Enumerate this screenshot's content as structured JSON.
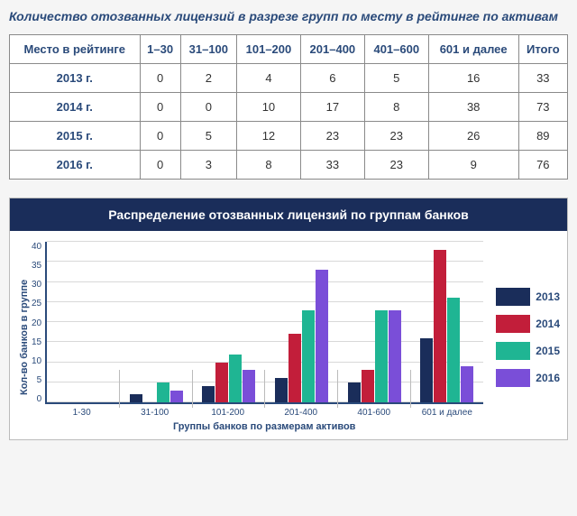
{
  "title": "Количество отозванных лицензий в разрезе групп по месту в рейтинге по активам",
  "table": {
    "header": [
      "Место в рейтинге",
      "1–30",
      "31–100",
      "101–200",
      "201–400",
      "401–600",
      "601 и далее",
      "Итого"
    ],
    "rows": [
      [
        "2013 г.",
        "0",
        "2",
        "4",
        "6",
        "5",
        "16",
        "33"
      ],
      [
        "2014 г.",
        "0",
        "0",
        "10",
        "17",
        "8",
        "38",
        "73"
      ],
      [
        "2015 г.",
        "0",
        "5",
        "12",
        "23",
        "23",
        "26",
        "89"
      ],
      [
        "2016 г.",
        "0",
        "3",
        "8",
        "33",
        "23",
        "9",
        "76"
      ]
    ]
  },
  "chart": {
    "header": "Распределение отозванных лицензий по группам банков",
    "type": "bar",
    "y_label": "Кол-во банков в группе",
    "x_label": "Группы банков по размерам активов",
    "categories": [
      "1-30",
      "31-100",
      "101-200",
      "201-400",
      "401-600",
      "601 и далее"
    ],
    "series": [
      {
        "name": "2013",
        "color": "#1a2d5a",
        "values": [
          0,
          2,
          4,
          6,
          5,
          16
        ]
      },
      {
        "name": "2014",
        "color": "#c21e3a",
        "values": [
          0,
          0,
          10,
          17,
          8,
          38
        ]
      },
      {
        "name": "2015",
        "color": "#1fb593",
        "values": [
          0,
          5,
          12,
          23,
          23,
          26
        ]
      },
      {
        "name": "2016",
        "color": "#7a4ed8",
        "values": [
          0,
          3,
          8,
          33,
          23,
          9
        ]
      }
    ],
    "ylim": [
      0,
      40
    ],
    "ytick_step": 5,
    "background_color": "#ffffff",
    "grid_color": "#d8d8d8",
    "axis_color": "#2a4a7a",
    "tick_fontsize": 10,
    "label_fontsize": 11,
    "legend_fontsize": 12
  }
}
